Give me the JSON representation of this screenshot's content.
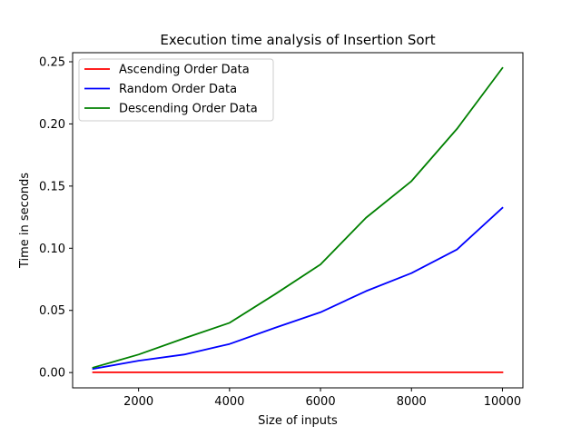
{
  "chart_data": {
    "type": "line",
    "title": "Execution time analysis of Insertion Sort",
    "xlabel": "Size of inputs",
    "ylabel": "Time in seconds",
    "xlim": [
      550,
      10450
    ],
    "ylim": [
      -0.0123,
      0.2573
    ],
    "xticks": [
      2000,
      4000,
      6000,
      8000,
      10000
    ],
    "xtick_labels": [
      "2000",
      "4000",
      "6000",
      "8000",
      "10000"
    ],
    "yticks": [
      0.0,
      0.05,
      0.1,
      0.15,
      0.2,
      0.25
    ],
    "ytick_labels": [
      "0.00",
      "0.05",
      "0.10",
      "0.15",
      "0.20",
      "0.25"
    ],
    "grid": false,
    "legend_position": "top-left",
    "x": [
      1000,
      2000,
      3000,
      4000,
      5000,
      6000,
      7000,
      8000,
      9000,
      10000
    ],
    "series": [
      {
        "name": "Ascending Order Data",
        "color": "#ff0000",
        "values": [
          0.0002,
          0.0002,
          0.0002,
          0.0002,
          0.0002,
          0.0002,
          0.0002,
          0.0002,
          0.0002,
          0.0002
        ]
      },
      {
        "name": "Random Order Data",
        "color": "#0000ff",
        "values": [
          0.003,
          0.0095,
          0.0145,
          0.023,
          0.036,
          0.0485,
          0.0655,
          0.08,
          0.099,
          0.1325
        ]
      },
      {
        "name": "Descending Order Data",
        "color": "#008000",
        "values": [
          0.004,
          0.0145,
          0.0275,
          0.04,
          0.063,
          0.087,
          0.1245,
          0.154,
          0.196,
          0.245
        ]
      }
    ]
  }
}
